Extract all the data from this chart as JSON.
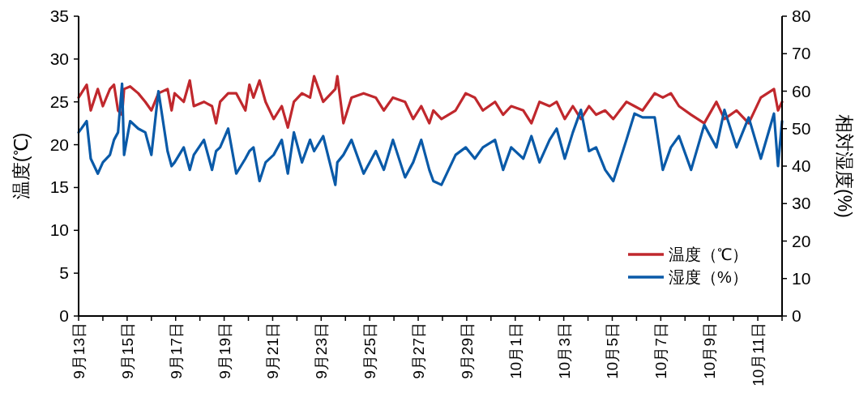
{
  "chart_data": {
    "type": "line",
    "ylabel": "温度(℃)",
    "y2label": "相対湿度(%)",
    "legend": "bottom right",
    "grid": false,
    "marker": "none",
    "line_style": "solid",
    "x": [
      "--09-13T00:00",
      "--09-13T08:00",
      "--09-13T12:00",
      "--09-13T19:00",
      "--09-14T00:00",
      "--09-14T07:00",
      "--09-14T11:00",
      "--09-14T15:00",
      "--09-14T19:00",
      "--09-14T21:00",
      "--09-15T03:00",
      "--09-15T11:00",
      "--09-15T18:00",
      "--09-16T00:00",
      "--09-16T07:00",
      "--09-16T16:00",
      "--09-16T20:00",
      "--09-16T23:00",
      "--09-17T08:00",
      "--09-17T14:00",
      "--09-17T18:00",
      "--09-18T04:00",
      "--09-18T12:00",
      "--09-18T16:00",
      "--09-18T20:00",
      "--09-19T04:00",
      "--09-19T12:00",
      "--09-19T21:00",
      "--09-20T01:00",
      "--09-20T05:00",
      "--09-20T11:00",
      "--09-20T17:00",
      "--09-21T01:00",
      "--09-21T09:00",
      "--09-21T15:00",
      "--09-21T21:00",
      "--09-22T05:00",
      "--09-22T13:00",
      "--09-22T17:00",
      "--09-23T02:00",
      "--09-23T14:00",
      "--09-23T16:00",
      "--09-23T22:00",
      "--09-24T06:00",
      "--09-24T18:00",
      "--09-25T06:00",
      "--09-25T14:00",
      "--09-25T23:00",
      "--09-26T11:00",
      "--09-26T19:00",
      "--09-27T03:00",
      "--09-27T11:00",
      "--09-27T15:00",
      "--09-27T23:00",
      "--09-28T13:00",
      "--09-28T23:00",
      "--09-29T08:00",
      "--09-29T16:00",
      "--09-30T04:00",
      "--09-30T12:00",
      "--09-30T20:00",
      "--10-01T08:00",
      "--10-01T16:00",
      "--10-02T00:00",
      "--10-02T10:00",
      "--10-02T17:00",
      "--10-03T01:00",
      "--10-03T09:00",
      "--10-03T17:00",
      "--10-04T01:00",
      "--10-04T08:00",
      "--10-04T17:00",
      "--10-05T01:00",
      "--10-05T14:00",
      "--10-05T22:00",
      "--10-06T06:00",
      "--10-06T18:00",
      "--10-07T02:00",
      "--10-07T10:00",
      "--10-07T18:00",
      "--10-08T06:00",
      "--10-08T19:00",
      "--10-09T07:00",
      "--10-09T15:00",
      "--10-10T03:00",
      "--10-10T15:00",
      "--10-11T03:00",
      "--10-11T16:00",
      "--10-11T20:00",
      "--10-12T00:00"
    ],
    "series": [
      {
        "name": "温度（℃）",
        "color": "#c0282d",
        "values": [
          25.5,
          27,
          24,
          26.5,
          24.5,
          26.5,
          27,
          24,
          23.5,
          26.5,
          26.8,
          26,
          25,
          24,
          26,
          26.5,
          24,
          26,
          25,
          27.5,
          24.5,
          25,
          24.5,
          22.5,
          25,
          26,
          26,
          24,
          27,
          25.5,
          27.5,
          25,
          23,
          24.5,
          22,
          25,
          26,
          25.5,
          28,
          25,
          26.5,
          28,
          22.5,
          25.5,
          26,
          25.5,
          24,
          25.5,
          25,
          23,
          24.5,
          22.5,
          24,
          23,
          24,
          26,
          25.5,
          24,
          25,
          23.5,
          24.5,
          24,
          22.5,
          25,
          24.5,
          25,
          23,
          24.5,
          23,
          24.5,
          23.5,
          24,
          23,
          25,
          24.5,
          24,
          26,
          25.5,
          26,
          24.5,
          23.5,
          22.5,
          25,
          23,
          24,
          22.5,
          25.5,
          26.5,
          24,
          25
        ]
      },
      {
        "name": "湿度（%）",
        "color": "#0a5aa8",
        "axis": "y2",
        "values": [
          49,
          52,
          42,
          38,
          41,
          43,
          47,
          49,
          62,
          43,
          52,
          50,
          49,
          43,
          60,
          44,
          40,
          41,
          45,
          39,
          43,
          47,
          39,
          44,
          45,
          50,
          38,
          42,
          44,
          45,
          36,
          41,
          43,
          47,
          38,
          49,
          41,
          47,
          44,
          48,
          35,
          41,
          43,
          47,
          38,
          44,
          39,
          47,
          37,
          41,
          47,
          39,
          36,
          35,
          43,
          45,
          42,
          45,
          47,
          39,
          45,
          42,
          48,
          41,
          47,
          50,
          42,
          49,
          55,
          44,
          45,
          39,
          36,
          47,
          54,
          53,
          53,
          39,
          45,
          48,
          39,
          51,
          45,
          55,
          45,
          53,
          42,
          54,
          40,
          52
        ]
      }
    ],
    "xlim": [
      "--09-13",
      "--10-12"
    ],
    "xticks": [
      {
        "value": "--09-13",
        "label": "9月13日"
      },
      {
        "value": "--09-14",
        "label": null
      },
      {
        "value": "--09-15",
        "label": "9月15日"
      },
      {
        "value": "--09-16",
        "label": null
      },
      {
        "value": "--09-17",
        "label": "9月17日"
      },
      {
        "value": "--09-18",
        "label": null
      },
      {
        "value": "--09-19",
        "label": "9月19日"
      },
      {
        "value": "--09-20",
        "label": null
      },
      {
        "value": "--09-21",
        "label": "9月21日"
      },
      {
        "value": "--09-22",
        "label": null
      },
      {
        "value": "--09-23",
        "label": "9月23日"
      },
      {
        "value": "--09-24",
        "label": null
      },
      {
        "value": "--09-25",
        "label": "9月25日"
      },
      {
        "value": "--09-26",
        "label": null
      },
      {
        "value": "--09-27",
        "label": "9月27日"
      },
      {
        "value": "--09-28",
        "label": null
      },
      {
        "value": "--09-29",
        "label": "9月29日"
      },
      {
        "value": "--09-30",
        "label": null
      },
      {
        "value": "--10-01",
        "label": "10月1日"
      },
      {
        "value": "--10-02",
        "label": null
      },
      {
        "value": "--10-03",
        "label": "10月3日"
      },
      {
        "value": "--10-04",
        "label": null
      },
      {
        "value": "--10-05",
        "label": "10月5日"
      },
      {
        "value": "--10-06",
        "label": null
      },
      {
        "value": "--10-07",
        "label": "10月7日"
      },
      {
        "value": "--10-08",
        "label": null
      },
      {
        "value": "--10-09",
        "label": "10月9日"
      },
      {
        "value": "--10-10",
        "label": null
      },
      {
        "value": "--10-11",
        "label": "10月11日"
      },
      {
        "value": "--10-12",
        "label": null
      }
    ],
    "ylim": [
      0,
      35
    ],
    "yticks": [
      0,
      5,
      10,
      15,
      20,
      25,
      30,
      35
    ],
    "y2lim": [
      0,
      80
    ],
    "y2ticks": [
      0,
      10,
      20,
      30,
      40,
      50,
      60,
      70,
      80
    ]
  }
}
